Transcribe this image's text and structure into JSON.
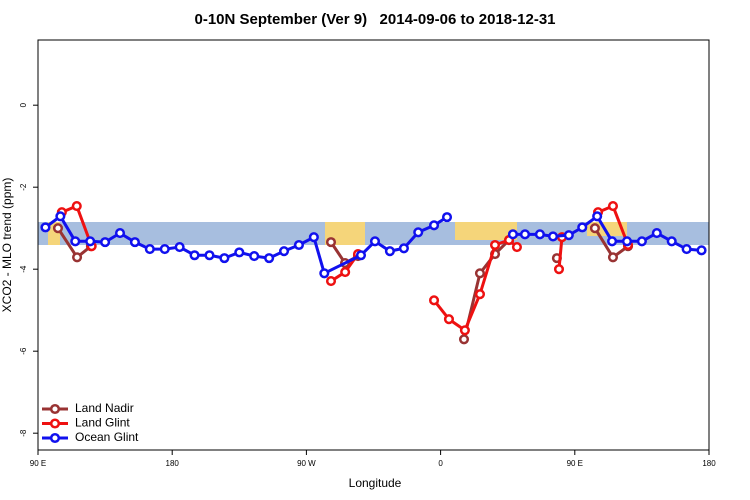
{
  "chart_data": {
    "type": "line",
    "title": "0-10N September (Ver 9)   2014-09-06 to 2018-12-31",
    "xlabel": "Longitude",
    "ylabel": "XCO2 - MLO trend (ppm)",
    "xlim": [
      90,
      540
    ],
    "ylim": [
      -8.41,
      1.59
    ],
    "xticks": [
      {
        "value": 90,
        "label": "90 E"
      },
      180,
      {
        "value": 270,
        "label": "90 W"
      },
      {
        "value": 360,
        "label": "0"
      },
      {
        "value": 450,
        "label": "90 E"
      },
      {
        "value": 540,
        "label": "180"
      }
    ],
    "yticks": [
      0,
      -2,
      -4,
      -6,
      -8
    ],
    "legend": "bottom-left",
    "series": [
      {
        "name": "Land Nadir",
        "color": "#993333",
        "x": [
          103.4,
          116.2,
          125.5,
          null,
          286.5,
          295.9,
          304.6,
          null,
          375.7,
          386.4,
          396.5,
          405.9,
          null,
          438,
          null,
          463.5,
          475.6,
          485.7
        ],
        "values": [
          -3.0,
          -3.71,
          -3.44,
          null,
          -3.34,
          -3.85,
          -3.68,
          null,
          -5.71,
          -4.1,
          -3.63,
          -3.29,
          null,
          -3.73,
          null,
          -3.0,
          -3.71,
          -3.44
        ]
      },
      {
        "name": "Land Glint",
        "color": "#ee1111",
        "x": [
          106,
          116,
          126,
          null,
          286.5,
          296,
          304.6,
          null,
          355.6,
          365.6,
          376.3,
          386.4,
          396.5,
          405.9,
          411.2,
          null,
          439.4,
          441.4,
          null,
          465.6,
          475.6,
          485.7
        ],
        "values": [
          -2.61,
          -2.46,
          -3.44,
          null,
          -4.29,
          -4.07,
          -3.63,
          null,
          -4.76,
          -5.22,
          -5.49,
          -4.61,
          -3.41,
          -3.29,
          -3.46,
          null,
          -4.0,
          -3.22,
          null,
          -2.61,
          -2.46,
          -3.41
        ]
      },
      {
        "name": "Ocean Glint",
        "color": "#1111ee",
        "x": [
          95,
          105,
          115,
          125,
          135,
          145,
          155,
          165,
          175,
          185,
          195,
          205,
          215,
          225,
          235,
          245,
          255,
          265,
          275,
          282,
          306.6,
          316,
          326,
          335.4,
          345,
          355.6,
          364.3,
          null,
          408.5,
          416.6,
          426.6,
          435.4,
          446,
          455,
          465,
          475,
          485,
          495,
          505,
          515,
          525,
          535
        ],
        "values": [
          -2.98,
          -2.71,
          -3.32,
          -3.32,
          -3.34,
          -3.12,
          -3.34,
          -3.51,
          -3.51,
          -3.46,
          -3.66,
          -3.66,
          -3.73,
          -3.59,
          -3.68,
          -3.73,
          -3.56,
          -3.41,
          -3.22,
          -4.1,
          -3.66,
          -3.32,
          -3.56,
          -3.49,
          -3.1,
          -2.93,
          -2.73,
          null,
          -3.15,
          -3.15,
          -3.15,
          -3.2,
          -3.17,
          -2.98,
          -2.71,
          -3.32,
          -3.32,
          -3.32,
          -3.12,
          -3.32,
          -3.51,
          -3.54
        ]
      }
    ]
  }
}
